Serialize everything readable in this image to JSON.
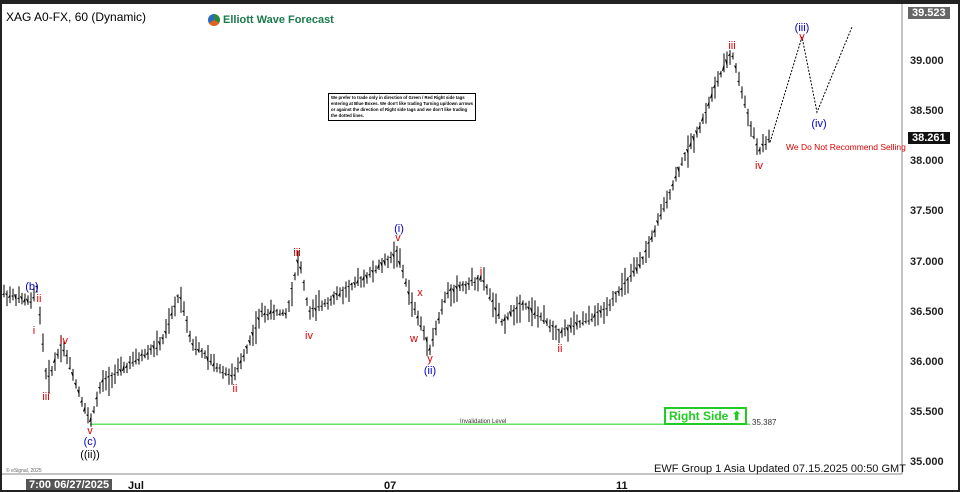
{
  "header": {
    "title": "XAG A0-FX, 60 (Dynamic)",
    "brand": "Elliott Wave Forecast"
  },
  "note": "We prefer to trade only in direction of Green / Red Right side tags entering at Blue Boxes. We don't like trading Turning up/down arrows or against the direction of Right side tags and we don't like trading the dotted lines.",
  "footer": {
    "date_box": "7:00 06/27/2025",
    "updated": "EWF Group 1 Asia Updated 07.15.2025 00:50 GMT",
    "copyright": "© eSignal, 2025"
  },
  "right_side": "Right Side ⬆",
  "invalidation": {
    "label": "Invalidation Level",
    "value": "35.387"
  },
  "warning": "We Do Not Recommend Selling",
  "colors": {
    "bars": "#000000",
    "invalidation": "#66e066",
    "wave_red": "#dd0000",
    "wave_blue": "#0000cc"
  },
  "chart_data": {
    "type": "line",
    "title": "XAG A0-FX, 60 (Dynamic)",
    "ylim": [
      35.0,
      39.6
    ],
    "yticks": [
      "39.000",
      "38.500",
      "38.000",
      "37.500",
      "37.000",
      "36.500",
      "36.000",
      "35.500",
      "35.000"
    ],
    "xticks": [
      "Jul",
      "07",
      "11"
    ],
    "last_price": "38.261",
    "high_price": "39.523",
    "price_path": [
      36.7,
      36.6,
      36.75,
      36.3,
      35.8,
      36.2,
      35.4,
      35.8,
      36.0,
      36.2,
      36.7,
      36.2,
      36.0,
      35.85,
      36.5,
      36.5,
      37.05,
      36.5,
      36.7,
      36.9,
      37.1,
      36.6,
      36.15,
      36.7,
      36.85,
      36.4,
      36.6,
      36.3,
      36.5,
      37.0,
      38.0,
      38.4,
      38.8,
      39.1,
      38.5,
      38.1,
      38.25
    ],
    "projection": [
      38.2,
      39.25,
      38.5,
      39.35
    ],
    "wave_labels": [
      {
        "t": "(b)",
        "c": "blue"
      },
      {
        "t": "ii",
        "c": "red"
      },
      {
        "t": "i",
        "c": "red"
      },
      {
        "t": "iii",
        "c": "red"
      },
      {
        "t": "iv",
        "c": "red"
      },
      {
        "t": "v",
        "c": "red"
      },
      {
        "t": "(c)",
        "c": "blue"
      },
      {
        "t": "((ii))",
        "c": "black"
      },
      {
        "t": "ii",
        "c": "red"
      },
      {
        "t": "iii",
        "c": "red"
      },
      {
        "t": "iv",
        "c": "red"
      },
      {
        "t": "(i)",
        "c": "blue"
      },
      {
        "t": "v",
        "c": "red"
      },
      {
        "t": "x",
        "c": "red"
      },
      {
        "t": "w",
        "c": "red"
      },
      {
        "t": "y",
        "c": "red"
      },
      {
        "t": "(ii)",
        "c": "blue"
      },
      {
        "t": "i",
        "c": "red"
      },
      {
        "t": "ii",
        "c": "red"
      },
      {
        "t": "iii",
        "c": "red"
      },
      {
        "t": "iv",
        "c": "red"
      },
      {
        "t": "(iii)",
        "c": "blue"
      },
      {
        "t": "v",
        "c": "red"
      },
      {
        "t": "(iv)",
        "c": "blue"
      }
    ]
  }
}
